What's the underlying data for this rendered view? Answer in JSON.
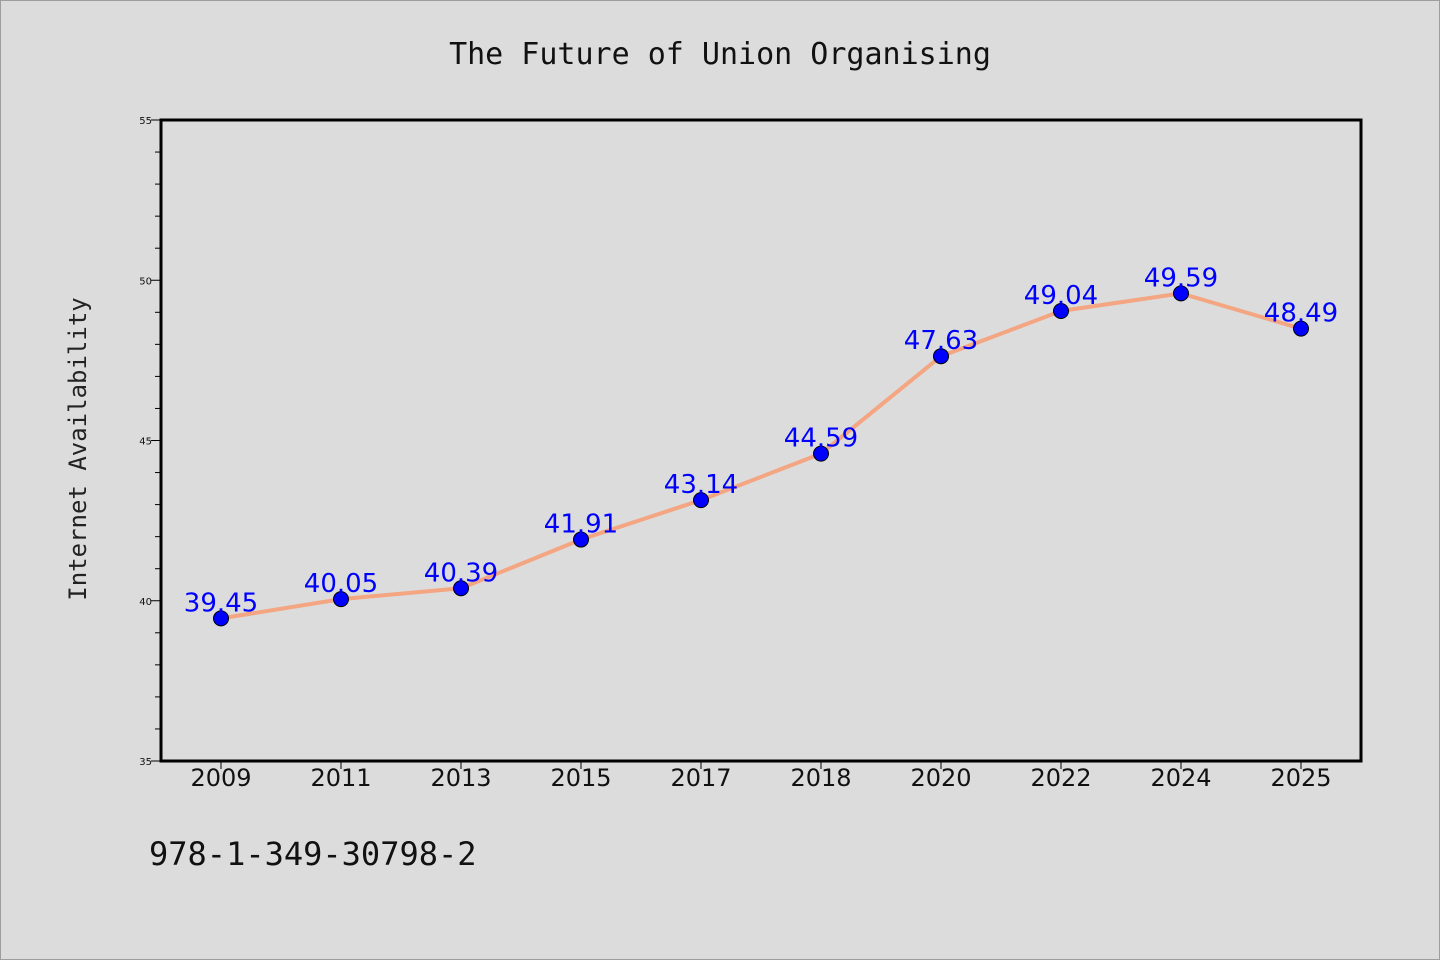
{
  "colors": {
    "background": "#dcdcdc",
    "line": "#f4a582",
    "marker": "#0000ff",
    "data_label": "#0000ff",
    "axes": "#000000"
  },
  "footer_text": "978-1-349-30798-2",
  "chart_data": {
    "type": "line",
    "title": "The Future of Union Organising",
    "xlabel": "",
    "ylabel": "Internet Availability",
    "categories": [
      "2009",
      "2011",
      "2013",
      "2015",
      "2017",
      "2018",
      "2020",
      "2022",
      "2024",
      "2025"
    ],
    "series": [
      {
        "values": [
          39.45,
          40.05,
          40.39,
          41.91,
          43.14,
          44.59,
          47.63,
          49.04,
          49.59,
          48.49
        ],
        "data_labels": [
          "39.45",
          "40.05",
          "40.39",
          "41.91",
          "43.14",
          "44.59",
          "47.63",
          "49.04",
          "49.59",
          "48.49"
        ]
      }
    ],
    "ylim": [
      35,
      55
    ],
    "yticks": [
      "35",
      "40",
      "45",
      "50",
      "55"
    ],
    "grid": false,
    "legend": "none"
  }
}
